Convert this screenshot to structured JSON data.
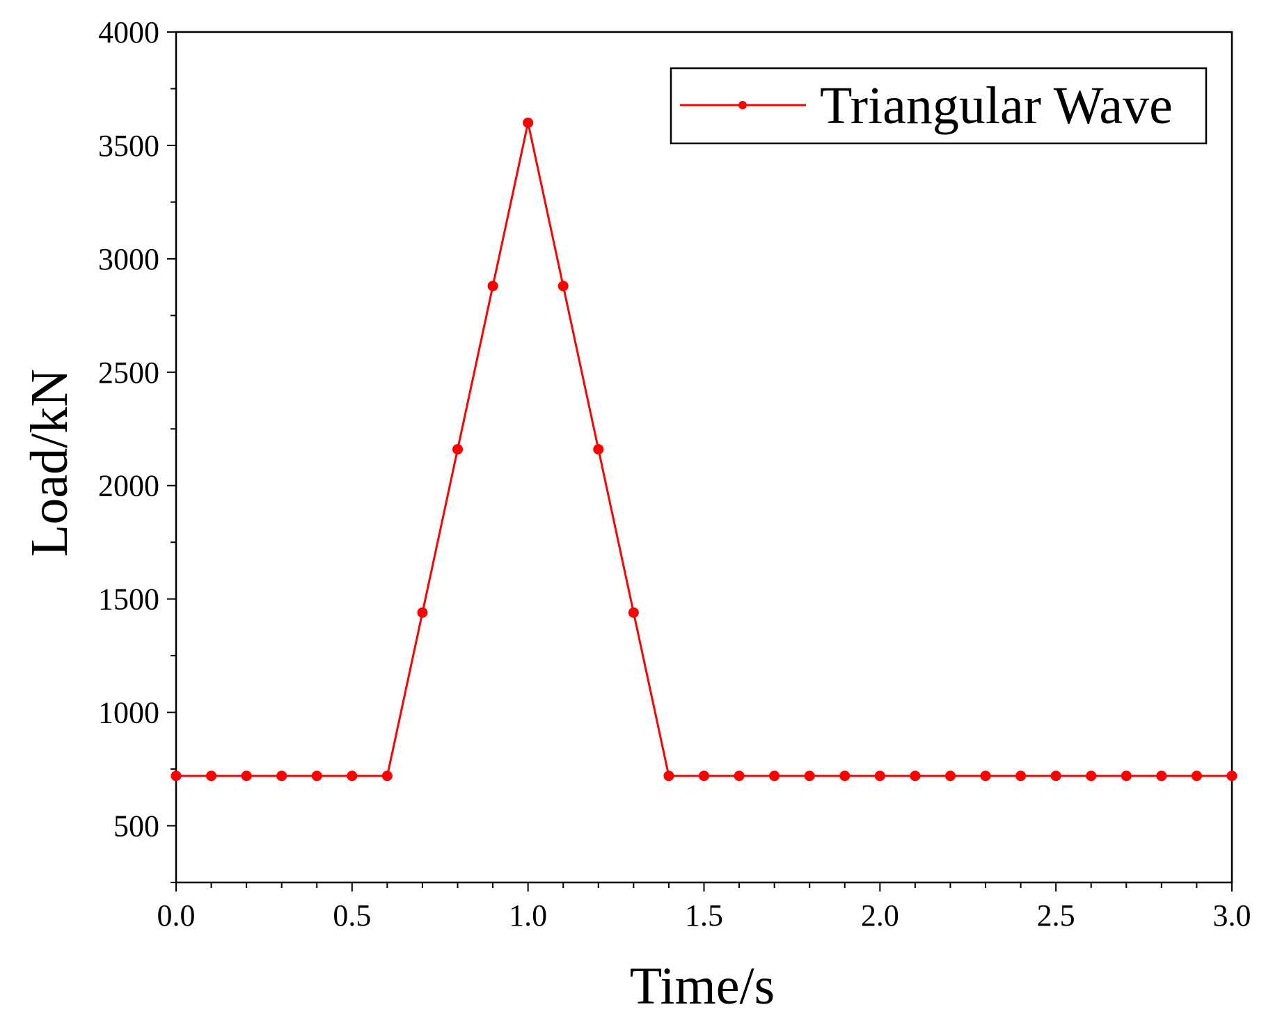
{
  "chart_data": {
    "type": "line",
    "title": "",
    "xlabel": "Time/s",
    "ylabel": "Load/kN",
    "xlim": [
      0.0,
      3.0
    ],
    "ylim": [
      250,
      4000
    ],
    "xticks": [
      "0.0",
      "0.5",
      "1.0",
      "1.5",
      "2.0",
      "2.5",
      "3.0"
    ],
    "xtick_values": [
      0.0,
      0.5,
      1.0,
      1.5,
      2.0,
      2.5,
      3.0
    ],
    "xminor_step": 0.1,
    "yticks": [
      "500",
      "1000",
      "1500",
      "2000",
      "2500",
      "3000",
      "3500",
      "4000"
    ],
    "ytick_values": [
      500,
      1000,
      1500,
      2000,
      2500,
      3000,
      3500,
      4000
    ],
    "yminor_step": 250,
    "grid": false,
    "legend_position": "top-right",
    "series": [
      {
        "name": "Triangular Wave",
        "color": "#ff0000",
        "marker": "circle",
        "x": [
          0.0,
          0.1,
          0.2,
          0.3,
          0.4,
          0.5,
          0.6,
          0.7,
          0.8,
          0.9,
          1.0,
          1.1,
          1.2,
          1.3,
          1.4,
          1.5,
          1.6,
          1.7,
          1.8,
          1.9,
          2.0,
          2.1,
          2.2,
          2.3,
          2.4,
          2.5,
          2.6,
          2.7,
          2.8,
          2.9,
          3.0
        ],
        "y": [
          720,
          720,
          720,
          720,
          720,
          720,
          720,
          1440,
          2160,
          2880,
          3600,
          2880,
          2160,
          1440,
          720,
          720,
          720,
          720,
          720,
          720,
          720,
          720,
          720,
          720,
          720,
          720,
          720,
          720,
          720,
          720,
          720
        ]
      }
    ]
  }
}
